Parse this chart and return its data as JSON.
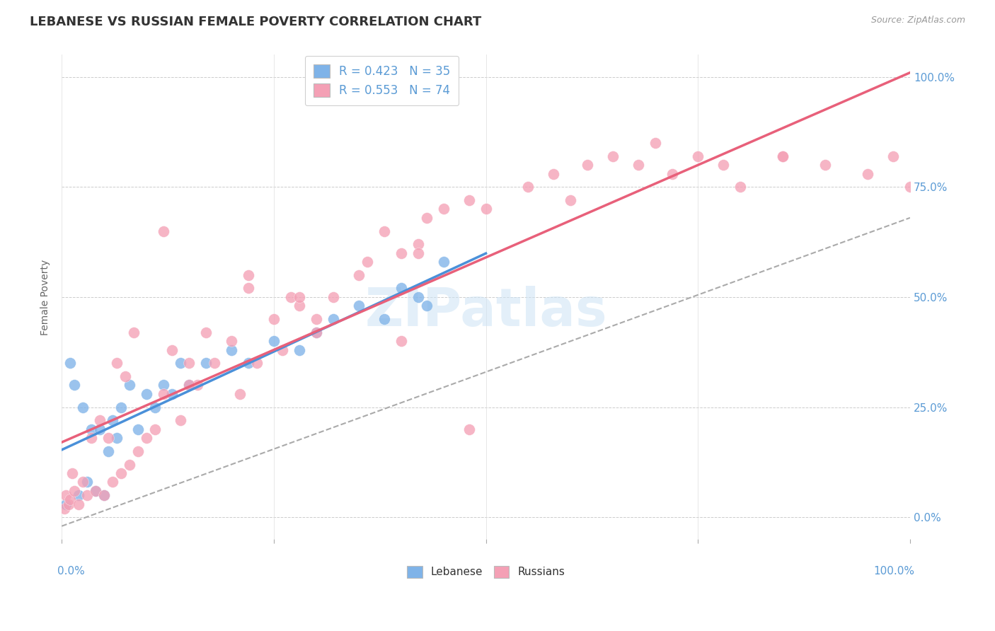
{
  "title": "LEBANESE VS RUSSIAN FEMALE POVERTY CORRELATION CHART",
  "source": "Source: ZipAtlas.com",
  "ylabel": "Female Poverty",
  "ytick_values": [
    0,
    25,
    50,
    75,
    100
  ],
  "xlim": [
    0,
    100
  ],
  "ylim": [
    -5,
    105
  ],
  "legend_r1": "R = 0.423   N = 35",
  "legend_r2": "R = 0.553   N = 74",
  "color_lebanese": "#7fb3e8",
  "color_russian": "#f4a0b5",
  "color_line_lebanese": "#4a90d9",
  "color_line_russian": "#e8607a",
  "color_dashed": "#aaaaaa",
  "background": "#ffffff",
  "leb_x": [
    0.5,
    1.0,
    1.5,
    2.0,
    2.5,
    3.0,
    3.5,
    4.0,
    4.5,
    5.0,
    5.5,
    6.0,
    6.5,
    7.0,
    8.0,
    9.0,
    10.0,
    11.0,
    12.0,
    13.0,
    14.0,
    15.0,
    17.0,
    20.0,
    22.0,
    25.0,
    28.0,
    30.0,
    32.0,
    35.0,
    38.0,
    40.0,
    42.0,
    43.0,
    45.0
  ],
  "leb_y": [
    3.0,
    35.0,
    30.0,
    5.0,
    25.0,
    8.0,
    20.0,
    6.0,
    20.0,
    5.0,
    15.0,
    22.0,
    18.0,
    25.0,
    30.0,
    20.0,
    28.0,
    25.0,
    30.0,
    28.0,
    35.0,
    30.0,
    35.0,
    38.0,
    35.0,
    40.0,
    38.0,
    42.0,
    45.0,
    48.0,
    45.0,
    52.0,
    50.0,
    48.0,
    58.0
  ],
  "rus_x": [
    0.3,
    0.5,
    0.8,
    1.0,
    1.2,
    1.5,
    2.0,
    2.5,
    3.0,
    3.5,
    4.0,
    4.5,
    5.0,
    5.5,
    6.0,
    6.5,
    7.0,
    7.5,
    8.0,
    8.5,
    9.0,
    10.0,
    11.0,
    12.0,
    13.0,
    14.0,
    15.0,
    16.0,
    17.0,
    18.0,
    20.0,
    21.0,
    22.0,
    23.0,
    25.0,
    26.0,
    27.0,
    28.0,
    30.0,
    32.0,
    35.0,
    36.0,
    38.0,
    40.0,
    42.0,
    43.0,
    45.0,
    48.0,
    50.0,
    55.0,
    58.0,
    60.0,
    62.0,
    65.0,
    68.0,
    70.0,
    72.0,
    75.0,
    78.0,
    80.0,
    85.0,
    90.0,
    95.0,
    98.0,
    100.0,
    85.0,
    22.0,
    28.0,
    12.0,
    48.0,
    30.0,
    40.0,
    42.0,
    15.0
  ],
  "rus_y": [
    2.0,
    5.0,
    3.0,
    4.0,
    10.0,
    6.0,
    3.0,
    8.0,
    5.0,
    18.0,
    6.0,
    22.0,
    5.0,
    18.0,
    8.0,
    35.0,
    10.0,
    32.0,
    12.0,
    42.0,
    15.0,
    18.0,
    20.0,
    28.0,
    38.0,
    22.0,
    35.0,
    30.0,
    42.0,
    35.0,
    40.0,
    28.0,
    52.0,
    35.0,
    45.0,
    38.0,
    50.0,
    48.0,
    42.0,
    50.0,
    55.0,
    58.0,
    65.0,
    60.0,
    62.0,
    68.0,
    70.0,
    72.0,
    70.0,
    75.0,
    78.0,
    72.0,
    80.0,
    82.0,
    80.0,
    85.0,
    78.0,
    82.0,
    80.0,
    75.0,
    82.0,
    80.0,
    78.0,
    82.0,
    75.0,
    82.0,
    55.0,
    50.0,
    65.0,
    20.0,
    45.0,
    40.0,
    60.0,
    30.0
  ]
}
